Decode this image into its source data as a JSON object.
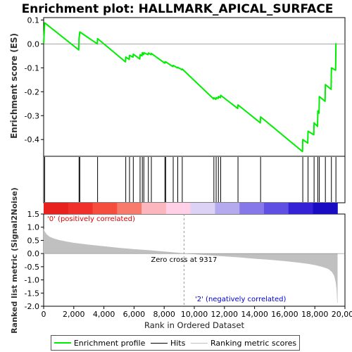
{
  "chart_data": {
    "type": "line",
    "title": "Enrichment plot: HALLMARK_APICAL_SURFACE",
    "ylabel_top": "Enrichment score (ES)",
    "ylabel_bottom": "Ranked list metric (Signal2Noise)",
    "xlabel": "Rank in Ordered Dataset",
    "xlim": [
      0,
      20000
    ],
    "ylim_top": [
      -0.47,
      0.11
    ],
    "ylim_bottom": [
      -2.0,
      1.5
    ],
    "x_ticks": [
      0,
      2000,
      4000,
      6000,
      8000,
      10000,
      12000,
      14000,
      16000,
      18000,
      20000
    ],
    "x_tick_labels": [
      "0",
      "2,000",
      "4,000",
      "6,000",
      "8,000",
      "10,000",
      "12,000",
      "14,000",
      "16,000",
      "18,000",
      "20,000"
    ],
    "y_ticks_top": [
      0.1,
      0.0,
      -0.1,
      -0.2,
      -0.3,
      -0.4
    ],
    "y_tick_labels_top": [
      "0.1",
      "0.0",
      "-0.1",
      "-0.2",
      "-0.3",
      "-0.4"
    ],
    "y_ticks_bottom": [
      1.5,
      1.0,
      0.5,
      0.0,
      -0.5,
      -1.0,
      -1.5,
      -2.0
    ],
    "y_tick_labels_bottom": [
      "1.5",
      "1.0",
      "0.5",
      "0.0",
      "-0.5",
      "-1.0",
      "-1.5",
      "-2.0"
    ],
    "total_genes": 19500,
    "hits": [
      70,
      2350,
      2400,
      3580,
      5450,
      5700,
      5950,
      6400,
      6550,
      6650,
      6950,
      7150,
      8050,
      8100,
      8600,
      8900,
      9200,
      11300,
      11450,
      11600,
      11750,
      12900,
      14400,
      17200,
      17550,
      17950,
      18200,
      18300,
      18700,
      19100,
      19400
    ],
    "es_points": [
      [
        0,
        0.0
      ],
      [
        70,
        0.088
      ],
      [
        2330,
        -0.025
      ],
      [
        2350,
        0.022
      ],
      [
        2400,
        0.05
      ],
      [
        3560,
        0.0
      ],
      [
        3580,
        0.022
      ],
      [
        5430,
        -0.075
      ],
      [
        5450,
        -0.055
      ],
      [
        5680,
        -0.065
      ],
      [
        5700,
        -0.048
      ],
      [
        5930,
        -0.055
      ],
      [
        5950,
        -0.043
      ],
      [
        6380,
        -0.063
      ],
      [
        6400,
        -0.045
      ],
      [
        6530,
        -0.05
      ],
      [
        6550,
        -0.037
      ],
      [
        6630,
        -0.045
      ],
      [
        6650,
        -0.037
      ],
      [
        6930,
        -0.045
      ],
      [
        6950,
        -0.038
      ],
      [
        7130,
        -0.045
      ],
      [
        7150,
        -0.04
      ],
      [
        8030,
        -0.08
      ],
      [
        8050,
        -0.075
      ],
      [
        8080,
        -0.079
      ],
      [
        8100,
        -0.075
      ],
      [
        8580,
        -0.095
      ],
      [
        8600,
        -0.09
      ],
      [
        8880,
        -0.1
      ],
      [
        8900,
        -0.098
      ],
      [
        9180,
        -0.108
      ],
      [
        9200,
        -0.105
      ],
      [
        11280,
        -0.23
      ],
      [
        11300,
        -0.225
      ],
      [
        11430,
        -0.232
      ],
      [
        11450,
        -0.225
      ],
      [
        11580,
        -0.228
      ],
      [
        11600,
        -0.22
      ],
      [
        11730,
        -0.225
      ],
      [
        11750,
        -0.215
      ],
      [
        12880,
        -0.27
      ],
      [
        12900,
        -0.255
      ],
      [
        14380,
        -0.33
      ],
      [
        14400,
        -0.305
      ],
      [
        17180,
        -0.45
      ],
      [
        17200,
        -0.4
      ],
      [
        17530,
        -0.415
      ],
      [
        17550,
        -0.365
      ],
      [
        17930,
        -0.38
      ],
      [
        17950,
        -0.33
      ],
      [
        18180,
        -0.345
      ],
      [
        18200,
        -0.28
      ],
      [
        18280,
        -0.29
      ],
      [
        18300,
        -0.22
      ],
      [
        18680,
        -0.24
      ],
      [
        18700,
        -0.17
      ],
      [
        19080,
        -0.19
      ],
      [
        19100,
        -0.1
      ],
      [
        19380,
        -0.11
      ],
      [
        19400,
        0.003
      ]
    ],
    "metric_points": [
      [
        0,
        0.92
      ],
      [
        80,
        0.82
      ],
      [
        200,
        0.72
      ],
      [
        400,
        0.63
      ],
      [
        700,
        0.56
      ],
      [
        1000,
        0.51
      ],
      [
        1500,
        0.45
      ],
      [
        2000,
        0.4
      ],
      [
        3000,
        0.33
      ],
      [
        4000,
        0.27
      ],
      [
        5000,
        0.21
      ],
      [
        6000,
        0.16
      ],
      [
        7000,
        0.12
      ],
      [
        8000,
        0.07
      ],
      [
        9000,
        0.02
      ],
      [
        9317,
        0.0
      ],
      [
        10000,
        -0.02
      ],
      [
        11000,
        -0.06
      ],
      [
        12000,
        -0.1
      ],
      [
        13000,
        -0.14
      ],
      [
        14000,
        -0.19
      ],
      [
        15000,
        -0.23
      ],
      [
        16000,
        -0.28
      ],
      [
        16800,
        -0.33
      ],
      [
        17500,
        -0.38
      ],
      [
        18000,
        -0.43
      ],
      [
        18500,
        -0.5
      ],
      [
        18900,
        -0.58
      ],
      [
        19150,
        -0.7
      ],
      [
        19300,
        -0.85
      ],
      [
        19400,
        -1.1
      ],
      [
        19460,
        -1.4
      ],
      [
        19500,
        -1.87
      ]
    ],
    "zero_cross": 9317,
    "zero_cross_label": "Zero cross at 9317",
    "pos_label": "'0' (positively correlated)",
    "neg_label": "'2' (negatively correlated)",
    "legend": [
      "Enrichment profile",
      "Hits",
      "Ranking metric scores"
    ],
    "colors": {
      "es": "#00ee00",
      "hits": "#000000",
      "metric": "#c0c0c0",
      "pos_label": "#dd0000",
      "neg_label": "#0000cc",
      "zero_line": "#999999"
    },
    "heat_colors": [
      "#e8201e",
      "#f0302a",
      "#f54e3e",
      "#f77a6c",
      "#fbb6be",
      "#ffd0e6",
      "#dcd2f5",
      "#b6aaee",
      "#8778ea",
      "#5f4fe2",
      "#3622d6",
      "#1a0cc2"
    ],
    "grid": false
  }
}
